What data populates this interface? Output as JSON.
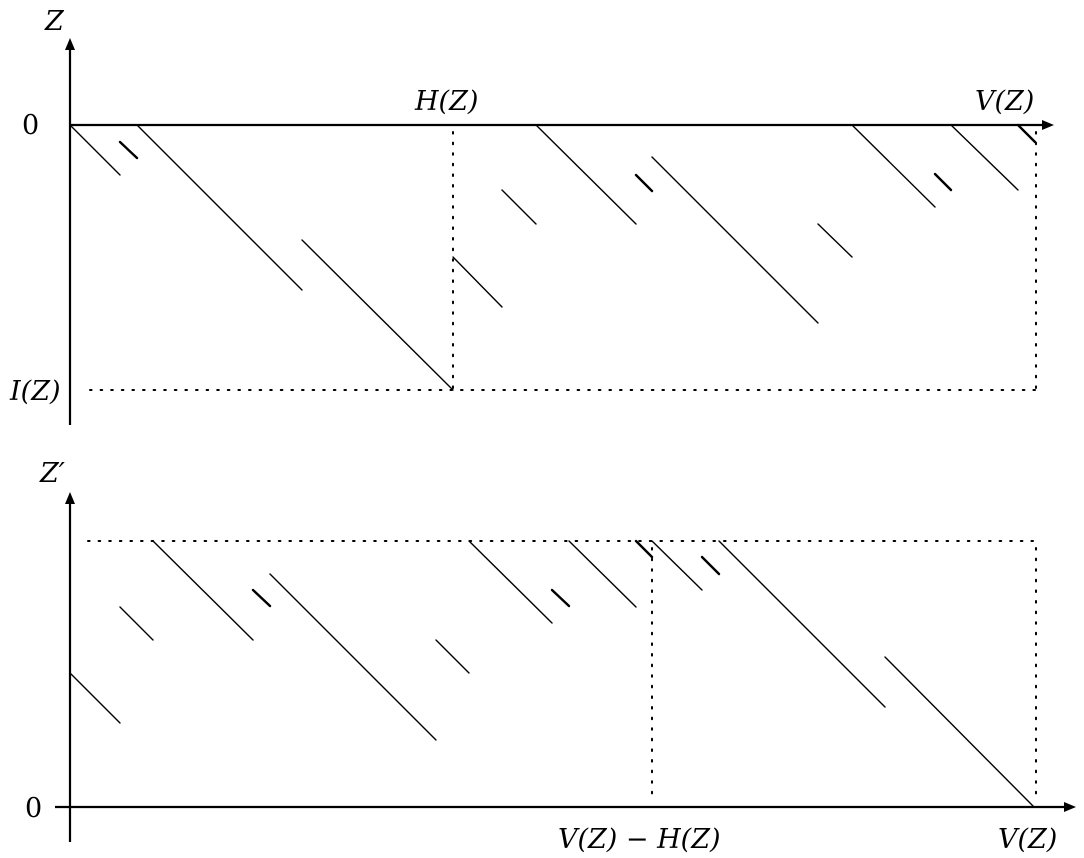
{
  "top_panel": {
    "y_axis_label": "Z",
    "origin_label": "0",
    "bottom_label": "I(Z)",
    "mid_label": "H(Z)",
    "end_label": "V(Z)"
  },
  "bottom_panel": {
    "y_axis_label": "Z′",
    "origin_label": "0",
    "mid_label": "V(Z) − H(Z)",
    "end_label": "V(Z)"
  },
  "colors": {
    "ink": "#000000",
    "background": "#ffffff"
  }
}
